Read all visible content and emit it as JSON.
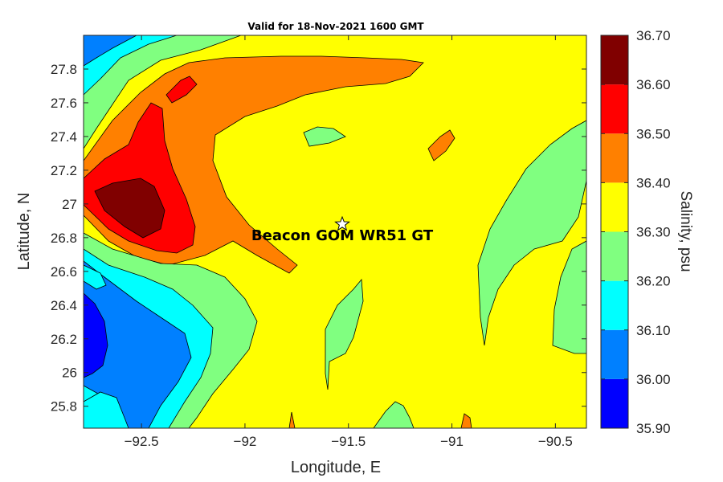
{
  "chart_data": {
    "type": "contour",
    "title": "Valid for 18-Nov-2021 1600 GMT",
    "xlabel": "Longitude, E",
    "ylabel": "Latitude, N",
    "colorbar_label": "Salinity, psu",
    "xlim": [
      -92.78,
      -90.35
    ],
    "ylim": [
      25.67,
      28.0
    ],
    "xticks": [
      -92.5,
      -92,
      -91.5,
      -91,
      -90.5
    ],
    "xtick_labels": [
      "−92.5",
      "−92",
      "−91.5",
      "−91",
      "−90.5"
    ],
    "yticks": [
      25.8,
      26,
      26.2,
      26.4,
      26.6,
      26.8,
      27,
      27.2,
      27.4,
      27.6,
      27.8
    ],
    "ytick_labels": [
      "25.8",
      "26",
      "26.2",
      "26.4",
      "26.6",
      "26.8",
      "27",
      "27.2",
      "27.4",
      "27.6",
      "27.8"
    ],
    "colorbar": {
      "levels": [
        35.9,
        36.0,
        36.1,
        36.2,
        36.3,
        36.4,
        36.5,
        36.6,
        36.7
      ],
      "tick_labels": [
        "35.90",
        "36.00",
        "36.10",
        "36.20",
        "36.30",
        "36.40",
        "36.50",
        "36.60",
        "36.70"
      ],
      "colors": [
        "#0000ff",
        "#0080ff",
        "#00ffff",
        "#80ff80",
        "#ffff00",
        "#ff8000",
        "#ff0000",
        "#800000"
      ]
    },
    "background_value": 36.35,
    "annotation": {
      "text": "Beacon GOM WR51 GT",
      "marker": "star",
      "lon": -91.53,
      "lat": 26.88
    }
  }
}
